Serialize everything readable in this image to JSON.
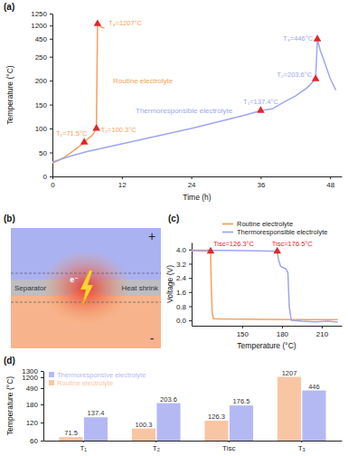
{
  "chart_data": [
    {
      "type": "line",
      "panel": "(a)",
      "x_label": "Time (h)",
      "y_label": "Temperature (°C)",
      "xlim": [
        0,
        50
      ],
      "xticks": [
        0,
        12,
        24,
        36,
        48
      ],
      "ylim": [
        0,
        1250
      ],
      "yticks": [
        0,
        50,
        100,
        150,
        200,
        250,
        450,
        1200,
        1250
      ],
      "marker": "triangle",
      "series": [
        {
          "name": "Routine electrolyte",
          "color": "#f4a15d",
          "x": [
            0,
            1,
            2,
            3,
            4,
            5,
            5.5,
            6,
            6.5,
            7,
            7.6,
            7.8,
            8.4,
            9
          ],
          "values": [
            28,
            33,
            40,
            48,
            57,
            66,
            71.5,
            77,
            82,
            88,
            100.3,
            1207,
            1120,
            1050
          ]
        },
        {
          "name": "Thermoresponsible electrolyte",
          "color": "#9ea6ee",
          "x": [
            0,
            3,
            6,
            9,
            12,
            15,
            18,
            21,
            24,
            27,
            30,
            33,
            36,
            38,
            40,
            42,
            44,
            45.5,
            45.8,
            46.3,
            47,
            48,
            49
          ],
          "values": [
            30,
            42,
            52,
            60,
            68,
            76,
            84,
            92,
            100,
            109,
            118,
            127,
            137.4,
            141,
            155,
            168,
            185,
            203.6,
            446,
            320,
            240,
            205,
            180
          ]
        }
      ],
      "annotations": [
        {
          "text": "T₁=71.5°C",
          "x": 5.5,
          "y": 71.5
        },
        {
          "text": "T₂=100.3°C",
          "x": 7.6,
          "y": 100.3
        },
        {
          "text": "T₃=1207°C",
          "x": 7.8,
          "y": 1207
        },
        {
          "text": "T₁=137.4°C",
          "x": 36,
          "y": 137.4
        },
        {
          "text": "T₂=203.6°C",
          "x": 45.5,
          "y": 203.6
        },
        {
          "text": "T₃=446°C",
          "x": 45.8,
          "y": 446
        }
      ]
    },
    {
      "type": "line",
      "panel": "(c)",
      "x_label": "Temperature (°C)",
      "y_label": "Voltage (V)",
      "xlim": [
        112,
        225
      ],
      "xticks": [
        150,
        180,
        210
      ],
      "ylim": [
        -0.3,
        4.4
      ],
      "yticks": [
        {
          "value": 0,
          "label": "0.0"
        },
        0.8,
        1.6,
        2.4,
        3.2,
        {
          "value": 4,
          "label": "4.0"
        }
      ],
      "marker": "triangle",
      "legend": "top",
      "series": [
        {
          "name": "Routine electrolyte",
          "color": "#f4a15d",
          "x": [
            112,
            116,
            120,
            124,
            126.3,
            126.8,
            127.5,
            128.5,
            135,
            150,
            170,
            190,
            210,
            222
          ],
          "values": [
            3.93,
            3.93,
            3.92,
            3.91,
            3.9,
            2.0,
            0.4,
            0.1,
            0.08,
            0.07,
            0.06,
            0.05,
            0.04,
            0.04
          ]
        },
        {
          "name": "Thermoresponsible electrolyte",
          "color": "#9ea6ee",
          "x": [
            112,
            120,
            130,
            140,
            150,
            160,
            170,
            176.5,
            177.5,
            179,
            181,
            183,
            184.5,
            185.5,
            187,
            195,
            205,
            215,
            222
          ],
          "values": [
            3.96,
            3.96,
            3.95,
            3.95,
            3.94,
            3.93,
            3.92,
            3.9,
            3.4,
            3.05,
            2.98,
            2.9,
            2.7,
            0.8,
            0.0,
            -0.05,
            -0.08,
            -0.05,
            -0.1
          ]
        }
      ],
      "annotations": [
        {
          "text": "Tisc=126.3°C",
          "x": 126.3,
          "y": 3.9
        },
        {
          "text": "Tisc=176.5°C",
          "x": 176.5,
          "y": 3.9
        }
      ]
    },
    {
      "type": "bar",
      "panel": "(d)",
      "y_label": "Temperature (°C)",
      "categories": [
        "T₁",
        "T₂",
        "Tisc",
        "T₃"
      ],
      "ylim": [
        60,
        1300
      ],
      "yticks": [
        60,
        120,
        180,
        490,
        1200,
        1300
      ],
      "data_labels": true,
      "legend": "top left",
      "series": [
        {
          "name": "Routine electrolyte",
          "color": "#f9c6a3",
          "values": [
            71.5,
            100.3,
            126.3,
            1207
          ]
        },
        {
          "name": "Thermoresponsive electrolyte",
          "color": "#b4b9f4",
          "values": [
            137.4,
            203.6,
            176.5,
            446
          ]
        }
      ]
    }
  ],
  "diagram": {
    "panel": "(b)",
    "labels": {
      "positive": "+",
      "negative": "-",
      "separator": "Separator",
      "heat_shrink": "Heat shrink",
      "electron": "e⁻"
    }
  }
}
